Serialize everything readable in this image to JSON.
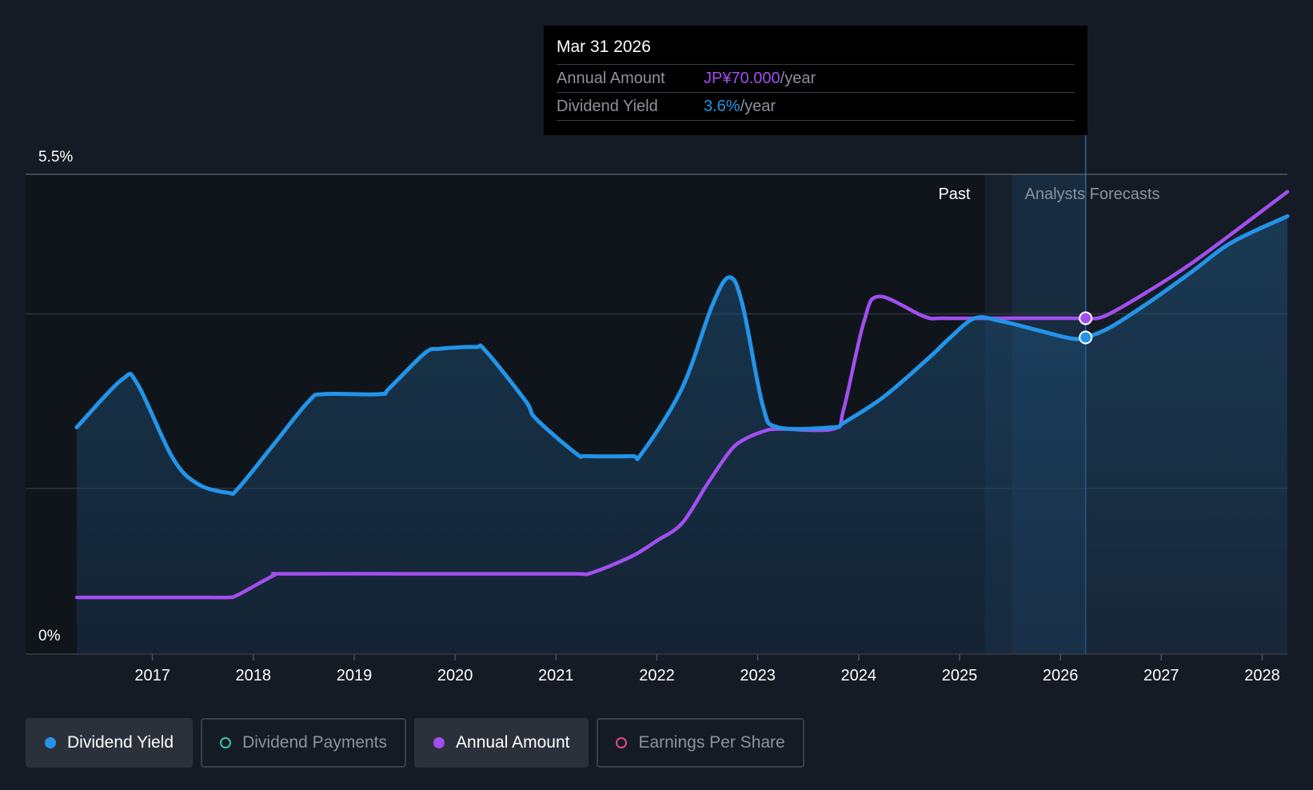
{
  "chart_data": {
    "type": "line",
    "x_ticks": [
      "2017",
      "2018",
      "2019",
      "2020",
      "2021",
      "2022",
      "2023",
      "2024",
      "2025",
      "2026",
      "2027",
      "2028"
    ],
    "y_tick_labels": [
      "5.5%",
      "0%"
    ],
    "ylim": [
      0,
      5.5
    ],
    "grid": true,
    "forecast_start": "2025.25",
    "past_label": "Past",
    "forecast_label": "Analysts Forecasts",
    "series": [
      {
        "name": "Dividend Yield",
        "color": "#2394e8",
        "unit": "%",
        "x": [
          2016.25,
          2016.7,
          2016.85,
          2017.2,
          2017.45,
          2017.75,
          2017.85,
          2018.2,
          2018.55,
          2018.7,
          2019.25,
          2019.35,
          2019.7,
          2019.85,
          2020.2,
          2020.3,
          2020.7,
          2020.8,
          2021.2,
          2021.3,
          2021.75,
          2021.85,
          2022.25,
          2022.55,
          2022.72,
          2022.85,
          2023.05,
          2023.2,
          2023.75,
          2023.85,
          2024.25,
          2024.7,
          2024.9,
          2025.15,
          2025.4,
          2025.75,
          2026.1,
          2026.25,
          2026.5,
          2026.9,
          2027.3,
          2027.7,
          2028.25
        ],
        "y": [
          2.6,
          3.15,
          3.1,
          2.25,
          1.95,
          1.85,
          1.9,
          2.4,
          2.9,
          2.98,
          2.98,
          3.05,
          3.45,
          3.5,
          3.52,
          3.48,
          2.9,
          2.7,
          2.3,
          2.27,
          2.27,
          2.3,
          3.05,
          4.0,
          4.32,
          4.0,
          2.85,
          2.6,
          2.6,
          2.65,
          2.95,
          3.4,
          3.62,
          3.85,
          3.82,
          3.72,
          3.62,
          3.63,
          3.75,
          4.05,
          4.38,
          4.72,
          5.02
        ]
      },
      {
        "name": "Annual Amount",
        "color": "#a24ff0",
        "unit": "JP¥",
        "x": [
          2016.25,
          2017.5,
          2017.75,
          2017.85,
          2018.2,
          2018.3,
          2019.5,
          2020.5,
          2021.2,
          2021.35,
          2021.75,
          2022.0,
          2022.25,
          2022.5,
          2022.72,
          2022.85,
          2023.05,
          2023.2,
          2023.75,
          2023.85,
          2024.05,
          2024.2,
          2024.65,
          2024.85,
          2025.5,
          2026.1,
          2026.25,
          2026.45,
          2026.9,
          2027.3,
          2027.7,
          2028.25
        ],
        "y": [
          0.65,
          0.65,
          0.65,
          0.68,
          0.9,
          0.92,
          0.92,
          0.92,
          0.92,
          0.93,
          1.12,
          1.3,
          1.5,
          1.95,
          2.32,
          2.45,
          2.55,
          2.58,
          2.58,
          2.8,
          3.8,
          4.1,
          3.87,
          3.85,
          3.85,
          3.85,
          3.85,
          3.88,
          4.18,
          4.48,
          4.82,
          5.3
        ]
      }
    ],
    "tooltip": {
      "date": "Mar 31 2026",
      "x": 2026.25,
      "rows": [
        {
          "label": "Annual Amount",
          "value": "JP¥70.000",
          "unit": "/year",
          "color": "#a24ff0"
        },
        {
          "label": "Dividend Yield",
          "value": "3.6%",
          "unit": "/year",
          "color": "#2394e8"
        }
      ]
    }
  },
  "legend": [
    {
      "label": "Dividend Yield",
      "color": "#2394e8",
      "active": true,
      "marker": "filled"
    },
    {
      "label": "Dividend Payments",
      "color": "#3fc1b3",
      "active": false,
      "marker": "ring"
    },
    {
      "label": "Annual Amount",
      "color": "#a24ff0",
      "active": true,
      "marker": "filled"
    },
    {
      "label": "Earnings Per Share",
      "color": "#e04b8a",
      "active": false,
      "marker": "ring"
    }
  ]
}
